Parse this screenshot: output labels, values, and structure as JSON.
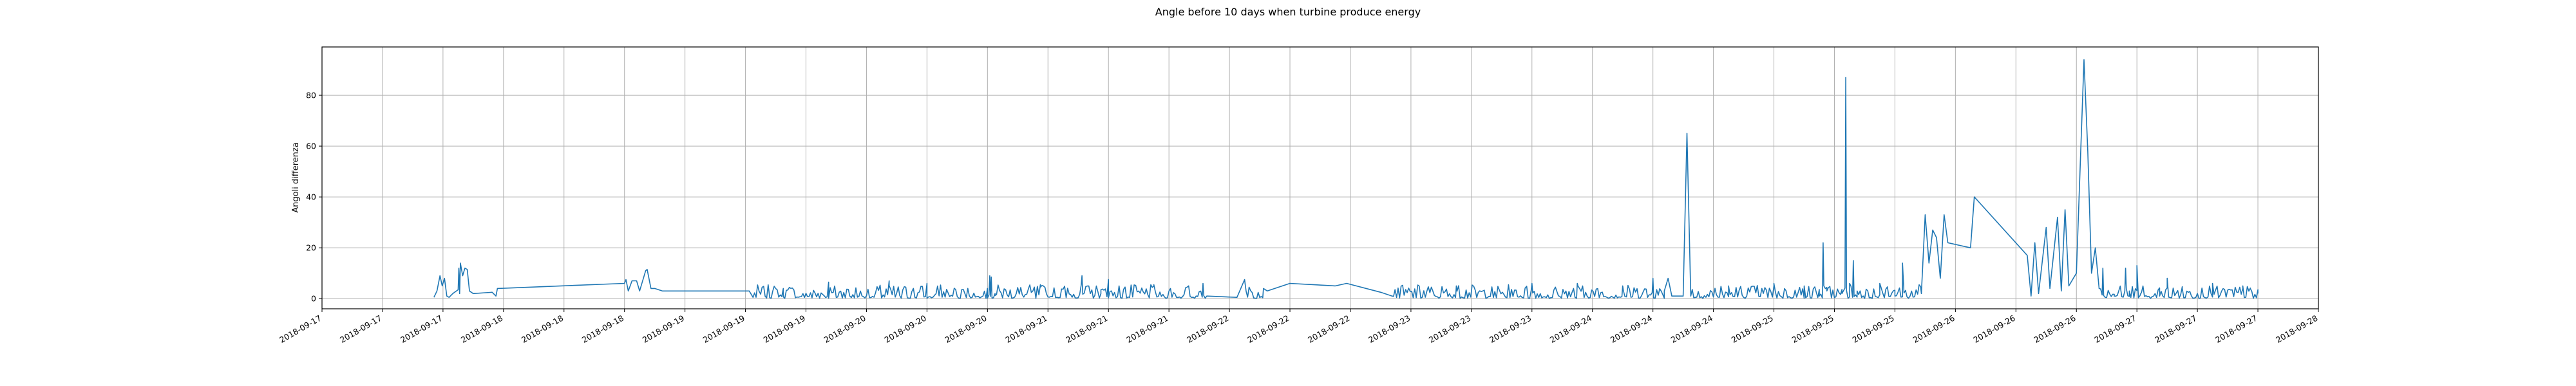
{
  "chart_data": {
    "type": "line",
    "title": "Angle before 10 days when turbine produce energy",
    "xlabel": "",
    "ylabel": "Angoli differenza",
    "grid": true,
    "legend": "none",
    "color": "#1f77b4",
    "x_tick_labels": [
      "2018-09-17",
      "2018-09-17",
      "2018-09-17",
      "2018-09-18",
      "2018-09-18",
      "2018-09-18",
      "2018-09-19",
      "2018-09-19",
      "2018-09-19",
      "2018-09-20",
      "2018-09-20",
      "2018-09-20",
      "2018-09-21",
      "2018-09-21",
      "2018-09-21",
      "2018-09-22",
      "2018-09-22",
      "2018-09-22",
      "2018-09-23",
      "2018-09-23",
      "2018-09-23",
      "2018-09-24",
      "2018-09-24",
      "2018-09-24",
      "2018-09-25",
      "2018-09-25",
      "2018-09-25",
      "2018-09-26",
      "2018-09-26",
      "2018-09-26",
      "2018-09-27",
      "2018-09-27",
      "2018-09-27",
      "2018-09-28"
    ],
    "x_tick_hours": [
      0,
      8,
      16,
      24,
      32,
      40,
      48,
      56,
      64,
      72,
      80,
      88,
      96,
      104,
      112,
      120,
      128,
      136,
      144,
      152,
      160,
      168,
      176,
      184,
      192,
      200,
      208,
      216,
      224,
      232,
      240,
      248,
      256,
      264
    ],
    "xlim_hours": [
      0,
      264
    ],
    "y_ticks": [
      0,
      20,
      40,
      60,
      80
    ],
    "ylim": [
      -4,
      99
    ],
    "anchor_points": [
      [
        14.8,
        0.5
      ],
      [
        15.2,
        3
      ],
      [
        15.6,
        9
      ],
      [
        15.9,
        5
      ],
      [
        16.2,
        8
      ],
      [
        16.5,
        1
      ],
      [
        16.8,
        0.5
      ],
      [
        17.3,
        2
      ],
      [
        18.0,
        3.5
      ],
      [
        18.3,
        14
      ],
      [
        18.6,
        9
      ],
      [
        18.9,
        12
      ],
      [
        19.2,
        11.5
      ],
      [
        19.5,
        3
      ],
      [
        20.0,
        2
      ],
      [
        22.5,
        2.5
      ],
      [
        23.0,
        1
      ],
      [
        40.0,
        6
      ],
      [
        40.5,
        3
      ],
      [
        41.0,
        7
      ],
      [
        42.0,
        3
      ],
      [
        42.8,
        11
      ],
      [
        43.5,
        4
      ],
      [
        45.0,
        3
      ],
      [
        46.5,
        3
      ],
      [
        56.5,
        3
      ],
      [
        57.0,
        0.5
      ],
      [
        88.0,
        4
      ],
      [
        88.5,
        8.5
      ],
      [
        89.0,
        2
      ],
      [
        103.0,
        2
      ],
      [
        104.0,
        7.5
      ],
      [
        116.5,
        6
      ],
      [
        117.0,
        1
      ],
      [
        121.0,
        0.5
      ],
      [
        122.0,
        7.5
      ],
      [
        124.5,
        4
      ],
      [
        125.0,
        3
      ],
      [
        140.0,
        2.5
      ],
      [
        141.5,
        1
      ],
      [
        177.5,
        3
      ],
      [
        178.0,
        8
      ],
      [
        178.5,
        1
      ],
      [
        180.0,
        1
      ],
      [
        180.5,
        65
      ],
      [
        181.0,
        1
      ],
      [
        198.0,
        1
      ],
      [
        198.5,
        22
      ],
      [
        199.0,
        3
      ],
      [
        201.0,
        2
      ],
      [
        201.5,
        87
      ],
      [
        202.0,
        6
      ],
      [
        202.5,
        15
      ],
      [
        203.0,
        3
      ],
      [
        208.0,
        1
      ],
      [
        209.0,
        14
      ],
      [
        209.5,
        2
      ],
      [
        211.5,
        2
      ],
      [
        212.0,
        33
      ],
      [
        212.5,
        14
      ],
      [
        213.0,
        27
      ],
      [
        213.5,
        24
      ],
      [
        214.0,
        8
      ],
      [
        214.5,
        33
      ],
      [
        215.0,
        22
      ],
      [
        218.0,
        20
      ],
      [
        218.5,
        40
      ],
      [
        225.5,
        17
      ],
      [
        226.0,
        1
      ],
      [
        226.5,
        22
      ],
      [
        227.0,
        2
      ],
      [
        228.0,
        28
      ],
      [
        228.5,
        4
      ],
      [
        229.5,
        32
      ],
      [
        230.0,
        3
      ],
      [
        230.5,
        35
      ],
      [
        231.0,
        5
      ],
      [
        232.0,
        10
      ],
      [
        233.0,
        94
      ],
      [
        233.5,
        58
      ],
      [
        234.0,
        10
      ],
      [
        234.5,
        20
      ],
      [
        235.0,
        4
      ],
      [
        237.0,
        1
      ],
      [
        238.5,
        12
      ],
      [
        239.0,
        3
      ],
      [
        240.0,
        13
      ],
      [
        240.5,
        2
      ],
      [
        243.0,
        1
      ],
      [
        246.0,
        4
      ],
      [
        255.0,
        4
      ],
      [
        256.0,
        2
      ]
    ],
    "spike_points": [
      [
        18.1,
        12
      ],
      [
        18.2,
        2
      ],
      [
        23.2,
        4
      ],
      [
        40.2,
        7.5
      ],
      [
        41.6,
        7
      ],
      [
        43.0,
        11.5
      ],
      [
        44.0,
        4
      ],
      [
        61.0,
        4
      ],
      [
        67.0,
        6.5
      ],
      [
        75.0,
        7
      ],
      [
        80.0,
        6
      ],
      [
        88.3,
        9
      ],
      [
        95.0,
        5.5
      ],
      [
        100.5,
        9
      ],
      [
        110.0,
        5
      ],
      [
        128.0,
        6
      ],
      [
        134.0,
        5
      ],
      [
        135.5,
        6
      ],
      [
        150.0,
        5
      ],
      [
        160.0,
        6
      ],
      [
        166.0,
        6
      ],
      [
        172.0,
        5
      ],
      [
        176.0,
        8
      ],
      [
        186.0,
        5
      ],
      [
        192.0,
        6
      ],
      [
        196.0,
        5
      ],
      [
        206.0,
        6
      ],
      [
        235.5,
        12
      ],
      [
        244.0,
        8
      ],
      [
        250.0,
        6
      ],
      [
        254.0,
        5
      ]
    ],
    "noisy_segments": [
      {
        "start": 57.0,
        "end": 117.0,
        "base": 1.5,
        "amp": 4.0
      },
      {
        "start": 122.0,
        "end": 124.5,
        "base": 2.0,
        "amp": 3.5
      },
      {
        "start": 141.5,
        "end": 177.5,
        "base": 1.5,
        "amp": 4.0
      },
      {
        "start": 181.0,
        "end": 211.5,
        "base": 1.5,
        "amp": 4.0
      },
      {
        "start": 235.0,
        "end": 256.0,
        "base": 1.5,
        "amp": 3.5
      }
    ]
  }
}
